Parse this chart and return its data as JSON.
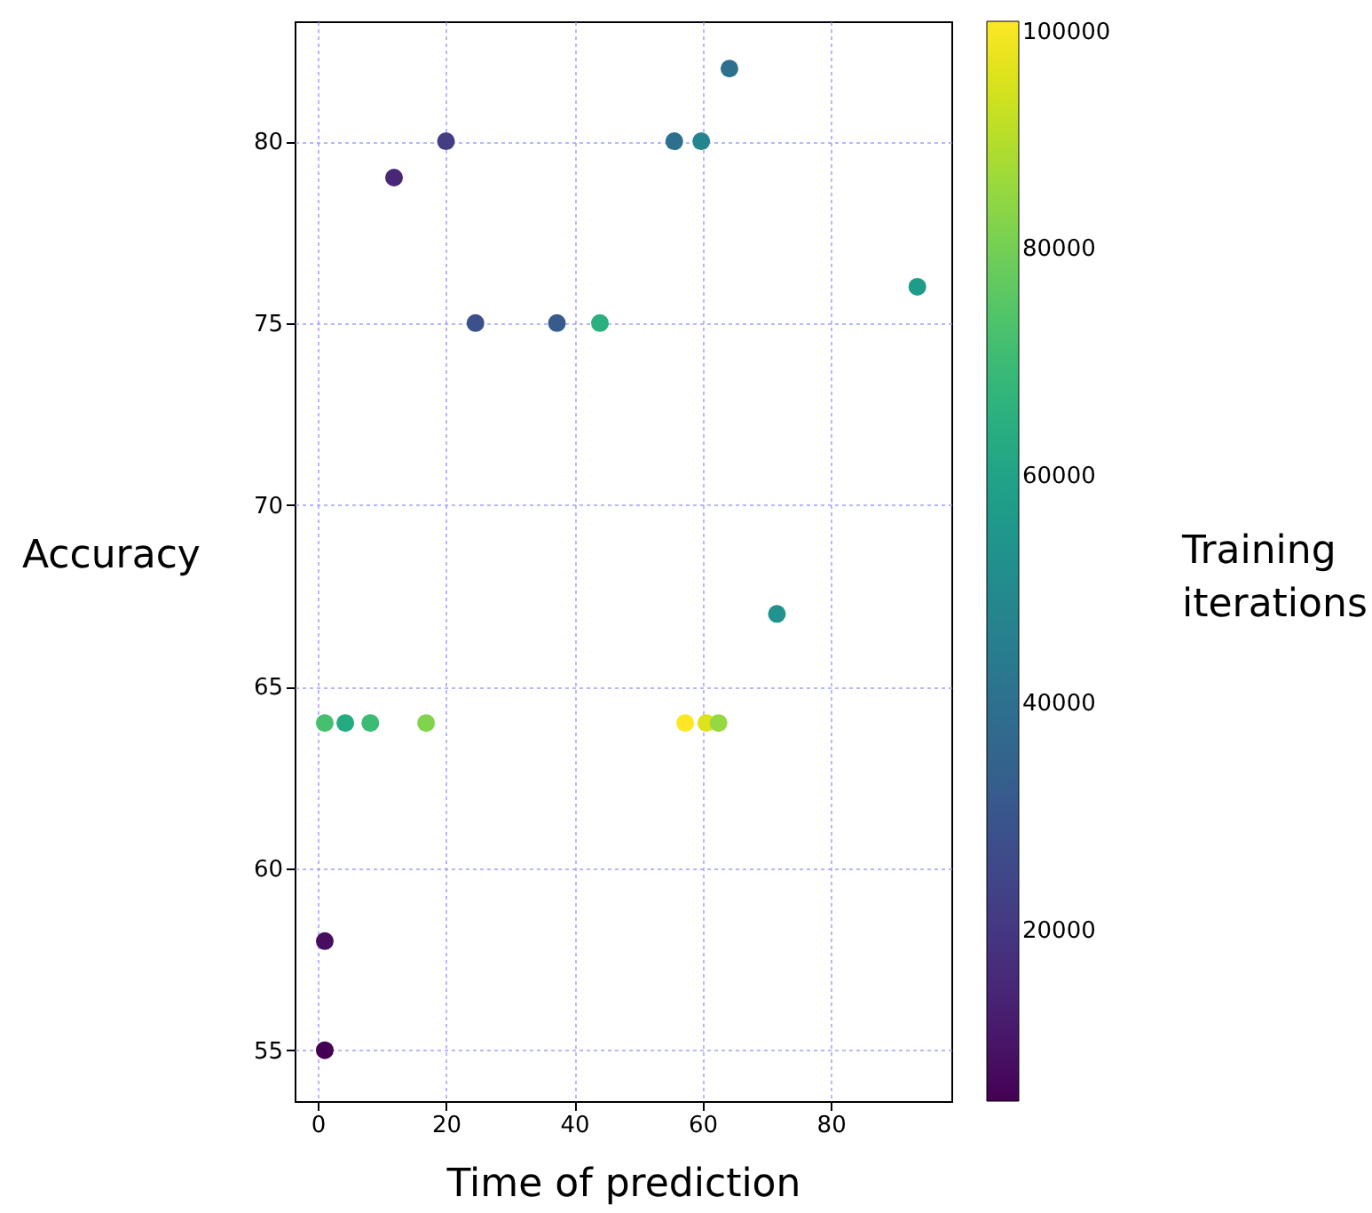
{
  "chart_data": {
    "type": "scatter",
    "xlabel": "Time of prediction",
    "ylabel": "Accuracy",
    "clabel": "Training iterations",
    "x": [
      1.1,
      1.1,
      11.9,
      20,
      24.6,
      37.3,
      44,
      55.6,
      59.8,
      64.2,
      93.5,
      71.6,
      1.1,
      4.3,
      8.2,
      16.9,
      57.3,
      60.6,
      62.5
    ],
    "values": [
      55,
      58,
      79,
      80,
      75,
      75,
      75,
      80,
      80,
      82,
      76,
      67,
      64,
      64,
      64,
      64,
      64,
      64,
      64
    ],
    "cvalues": [
      5000,
      8000,
      15000,
      22000,
      28000,
      32000,
      65000,
      40000,
      48000,
      40000,
      57000,
      53000,
      72000,
      63000,
      70000,
      82000,
      100000,
      95000,
      85000
    ],
    "xlim": [
      -3.6,
      98.8
    ],
    "xticks": [
      0,
      20,
      40,
      60,
      80
    ],
    "ylim": [
      53.6,
      83.3
    ],
    "yticks": [
      55,
      60,
      65,
      70,
      75,
      80
    ],
    "clim": [
      5000,
      100000
    ],
    "cticks": [
      20000,
      40000,
      60000,
      80000,
      100000
    ],
    "grid": true,
    "marker": "circle"
  }
}
